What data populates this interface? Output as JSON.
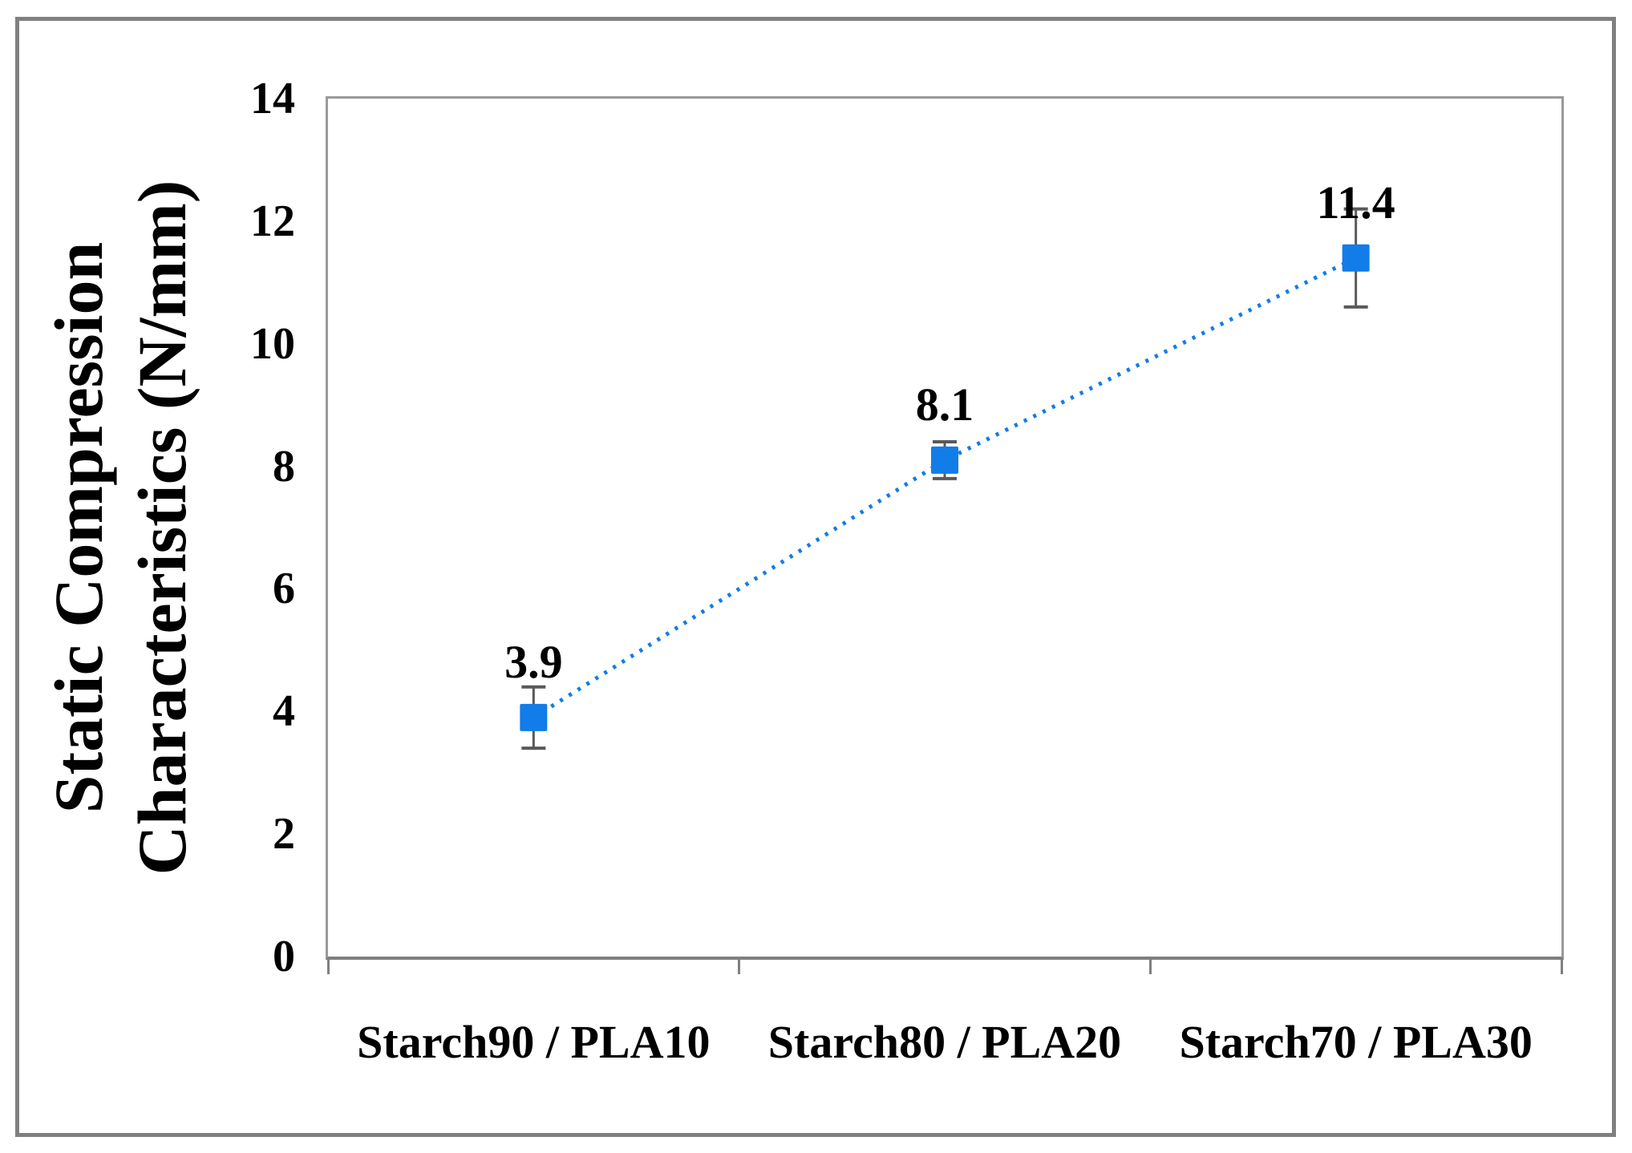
{
  "chart_data": {
    "type": "line",
    "title": "",
    "xlabel": "",
    "ylabel": "Static Compression Characteristics (N/mm)",
    "ylabel_line1": "Static Compression",
    "ylabel_line2": "Characteristics (N/mm)",
    "categories": [
      "Starch90 / PLA10",
      "Starch80 / PLA20",
      "Starch70 / PLA30"
    ],
    "values": [
      3.9,
      8.1,
      11.4
    ],
    "value_labels": [
      "3.9",
      "8.1",
      "11.4"
    ],
    "error_bars": [
      0.5,
      0.3,
      0.8
    ],
    "y_ticks": [
      0,
      2,
      4,
      6,
      8,
      10,
      12,
      14
    ],
    "ylim": [
      0,
      14
    ],
    "grid": "horizontal",
    "legend": "none",
    "line_style": "dotted",
    "marker": "square",
    "colors": {
      "series_blue": "#127ce8",
      "error_bar_gray": "#595959",
      "gridline_gray": "#d6d6d6",
      "plot_border_gray": "#9a9a9a",
      "axis_gray": "#7f7f7f",
      "frame_gray": "#808080",
      "text_black": "#000000"
    }
  }
}
